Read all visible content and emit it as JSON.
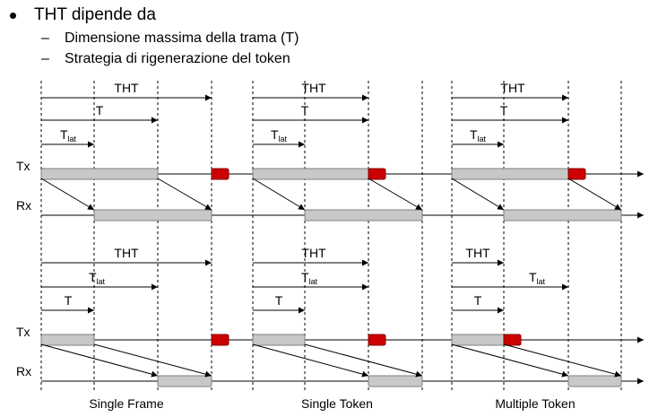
{
  "heading": "THT dipende da",
  "bullets": [
    "Dimensione massima della trama (T)",
    "Strategia di rigenerazione del token"
  ],
  "row_labels": {
    "tx": "Tx",
    "rx": "Rx"
  },
  "column_captions": [
    "Single Frame",
    "Single Token",
    "Multiple Token"
  ],
  "measure_labels": {
    "tht": "THT",
    "t": "T",
    "t_lat_main": "T",
    "t_lat_sub": "lat"
  },
  "colors": {
    "frame_fill": "#c8c8c8",
    "frame_stroke": "#7f7f7f",
    "token_fill": "#cc0000",
    "token_stroke": "#8a0000",
    "line": "#000000",
    "dashed_guide": "#000000"
  },
  "dash_glyph": "–"
}
